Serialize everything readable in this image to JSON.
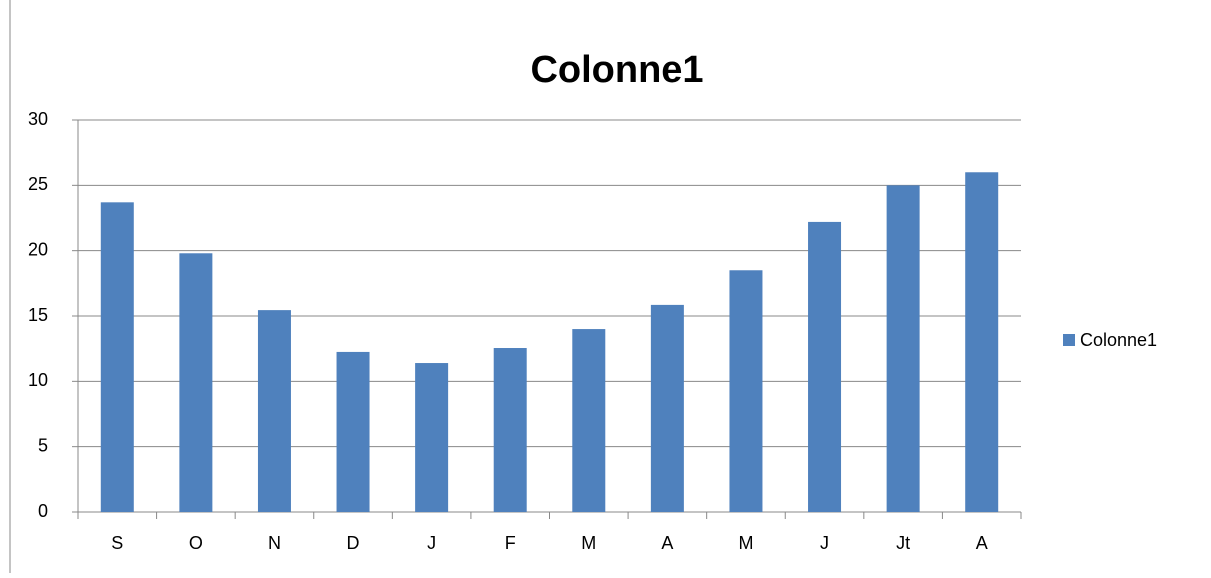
{
  "chart_data": {
    "type": "bar",
    "title": "Colonne1",
    "categories": [
      "S",
      "O",
      "N",
      "D",
      "J",
      "F",
      "M",
      "A",
      "M",
      "J",
      "Jt",
      "A"
    ],
    "series": [
      {
        "name": "Colonne1",
        "color": "#4f81bd",
        "values": [
          23.7,
          19.8,
          15.45,
          12.25,
          11.4,
          12.55,
          14.0,
          15.85,
          18.5,
          22.2,
          25.0,
          26.0
        ]
      }
    ],
    "ylim": [
      0,
      30
    ],
    "yticks": [
      0,
      5,
      10,
      15,
      20,
      25,
      30
    ],
    "grid": true,
    "legend": "right"
  }
}
